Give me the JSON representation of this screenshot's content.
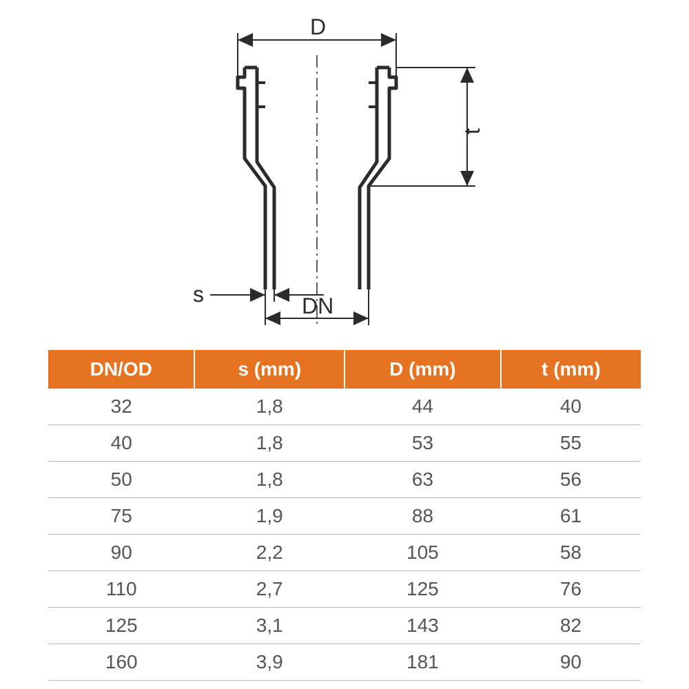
{
  "diagram": {
    "labels": {
      "D": "D",
      "t": "t",
      "s": "s",
      "DN": "DN"
    },
    "stroke_color": "#2b2b2b",
    "stroke_main": 5,
    "stroke_dim": 2,
    "background": "#ffffff"
  },
  "table": {
    "header_bg": "#e67321",
    "header_color": "#ffffff",
    "row_separator": "#b8b8b8",
    "cell_color": "#555555",
    "columns": [
      "DN/OD",
      "s (mm)",
      "D (mm)",
      "t (mm)"
    ],
    "rows": [
      [
        "32",
        "1,8",
        "44",
        "40"
      ],
      [
        "40",
        "1,8",
        "53",
        "55"
      ],
      [
        "50",
        "1,8",
        "63",
        "56"
      ],
      [
        "75",
        "1,9",
        "88",
        "61"
      ],
      [
        "90",
        "2,2",
        "105",
        "58"
      ],
      [
        "110",
        "2,7",
        "125",
        "76"
      ],
      [
        "125",
        "3,1",
        "143",
        "82"
      ],
      [
        "160",
        "3,9",
        "181",
        "90"
      ]
    ]
  }
}
